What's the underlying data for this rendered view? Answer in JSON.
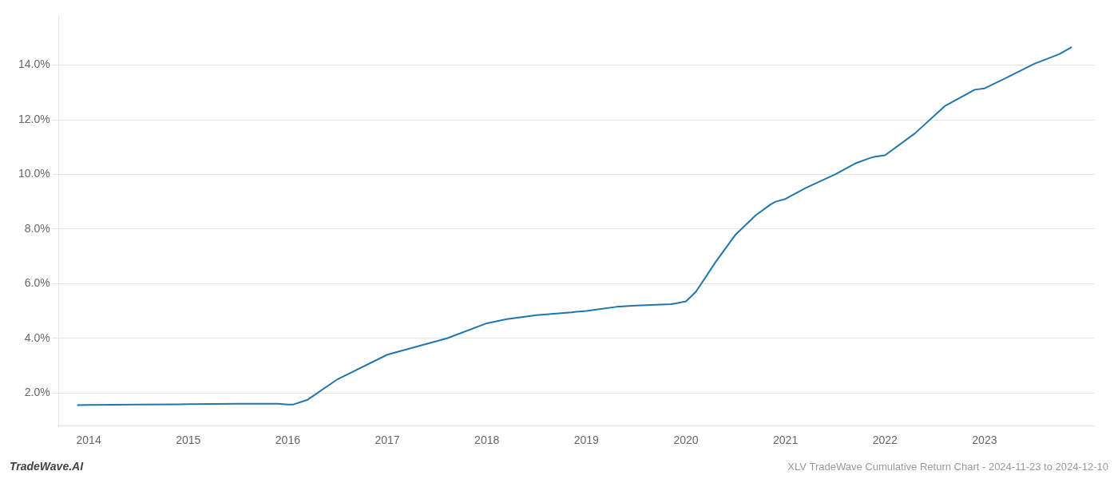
{
  "chart_data": {
    "type": "line",
    "x": [
      2013.89,
      2014.0,
      2014.5,
      2014.9,
      2015.0,
      2015.5,
      2015.9,
      2016.0,
      2016.05,
      2016.2,
      2016.5,
      2017.0,
      2017.3,
      2017.6,
      2018.0,
      2018.2,
      2018.5,
      2018.85,
      2018.9,
      2019.0,
      2019.1,
      2019.3,
      2019.5,
      2019.85,
      2019.9,
      2020.0,
      2020.1,
      2020.3,
      2020.5,
      2020.7,
      2020.85,
      2020.9,
      2021.0,
      2021.2,
      2021.5,
      2021.7,
      2021.85,
      2021.9,
      2022.0,
      2022.3,
      2022.6,
      2022.85,
      2022.9,
      2023.0,
      2023.2,
      2023.5,
      2023.75,
      2023.87
    ],
    "values": [
      1.55,
      1.56,
      1.57,
      1.58,
      1.59,
      1.6,
      1.6,
      1.57,
      1.57,
      1.75,
      2.5,
      3.4,
      3.7,
      4.0,
      4.55,
      4.7,
      4.85,
      4.95,
      4.97,
      5.0,
      5.05,
      5.15,
      5.2,
      5.25,
      5.28,
      5.35,
      5.7,
      6.8,
      7.8,
      8.5,
      8.9,
      9.0,
      9.1,
      9.5,
      10.0,
      10.4,
      10.6,
      10.65,
      10.7,
      11.5,
      12.5,
      13.0,
      13.1,
      13.15,
      13.5,
      14.05,
      14.4,
      14.65
    ],
    "color": "#2176ae",
    "xlim": [
      2013.7,
      2024.1
    ],
    "xticks": [
      2014,
      2015,
      2016,
      2017,
      2018,
      2019,
      2020,
      2021,
      2022,
      2023
    ],
    "ylim": [
      0.8,
      15.8
    ],
    "yticks": [
      {
        "value": 2.0,
        "label": "2.0%"
      },
      {
        "value": 4.0,
        "label": "4.0%"
      },
      {
        "value": 6.0,
        "label": "6.0%"
      },
      {
        "value": 8.0,
        "label": "8.0%"
      },
      {
        "value": 10.0,
        "label": "10.0%"
      },
      {
        "value": 12.0,
        "label": "12.0%"
      },
      {
        "value": 14.0,
        "label": "14.0%"
      }
    ],
    "grid": "y",
    "annotations": [
      "TradeWave.AI",
      "XLV TradeWave Cumulative Return Chart - 2024-11-23 to 2024-12-10"
    ]
  }
}
